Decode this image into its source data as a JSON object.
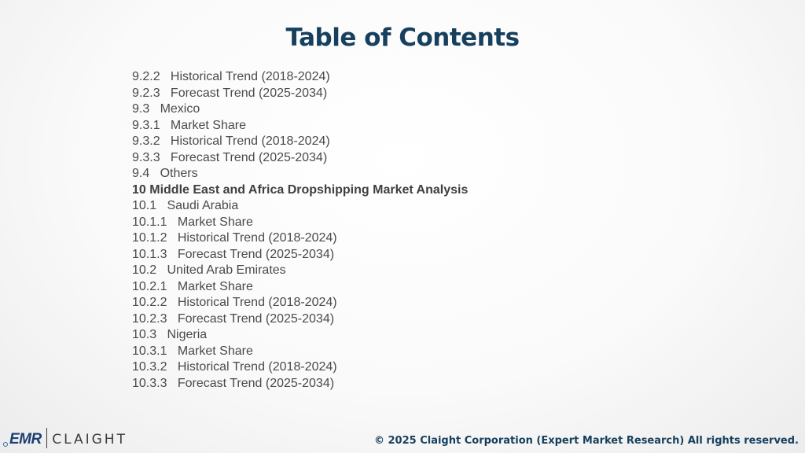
{
  "title": "Table of Contents",
  "toc_items": [
    {
      "text": "9.2.2   Historical Trend (2018-2024)",
      "bold": false
    },
    {
      "text": "9.2.3   Forecast Trend (2025-2034)",
      "bold": false
    },
    {
      "text": "9.3   Mexico",
      "bold": false
    },
    {
      "text": "9.3.1   Market Share",
      "bold": false
    },
    {
      "text": "9.3.2   Historical Trend (2018-2024)",
      "bold": false
    },
    {
      "text": "9.3.3   Forecast Trend (2025-2034)",
      "bold": false
    },
    {
      "text": "9.4   Others",
      "bold": false
    },
    {
      "text": "10 Middle East and Africa Dropshipping Market Analysis",
      "bold": true
    },
    {
      "text": "10.1   Saudi Arabia",
      "bold": false
    },
    {
      "text": "10.1.1   Market Share",
      "bold": false
    },
    {
      "text": "10.1.2   Historical Trend (2018-2024)",
      "bold": false
    },
    {
      "text": "10.1.3   Forecast Trend (2025-2034)",
      "bold": false
    },
    {
      "text": "10.2   United Arab Emirates",
      "bold": false
    },
    {
      "text": "10.2.1   Market Share",
      "bold": false
    },
    {
      "text": "10.2.2   Historical Trend (2018-2024)",
      "bold": false
    },
    {
      "text": "10.2.3   Forecast Trend (2025-2034)",
      "bold": false
    },
    {
      "text": "10.3   Nigeria",
      "bold": false
    },
    {
      "text": "10.3.1   Market Share",
      "bold": false
    },
    {
      "text": "10.3.2   Historical Trend (2018-2024)",
      "bold": false
    },
    {
      "text": "10.3.3   Forecast Trend (2025-2034)",
      "bold": false
    }
  ],
  "logo": {
    "emr": "EMR",
    "claight": "CLAIGHT"
  },
  "footer": "© 2025 Claight Corporation (Expert Market Research) All rights reserved.",
  "colors": {
    "title": "#17405e",
    "body_text": "#4a4a4a",
    "emr_logo": "#1c3e73"
  }
}
